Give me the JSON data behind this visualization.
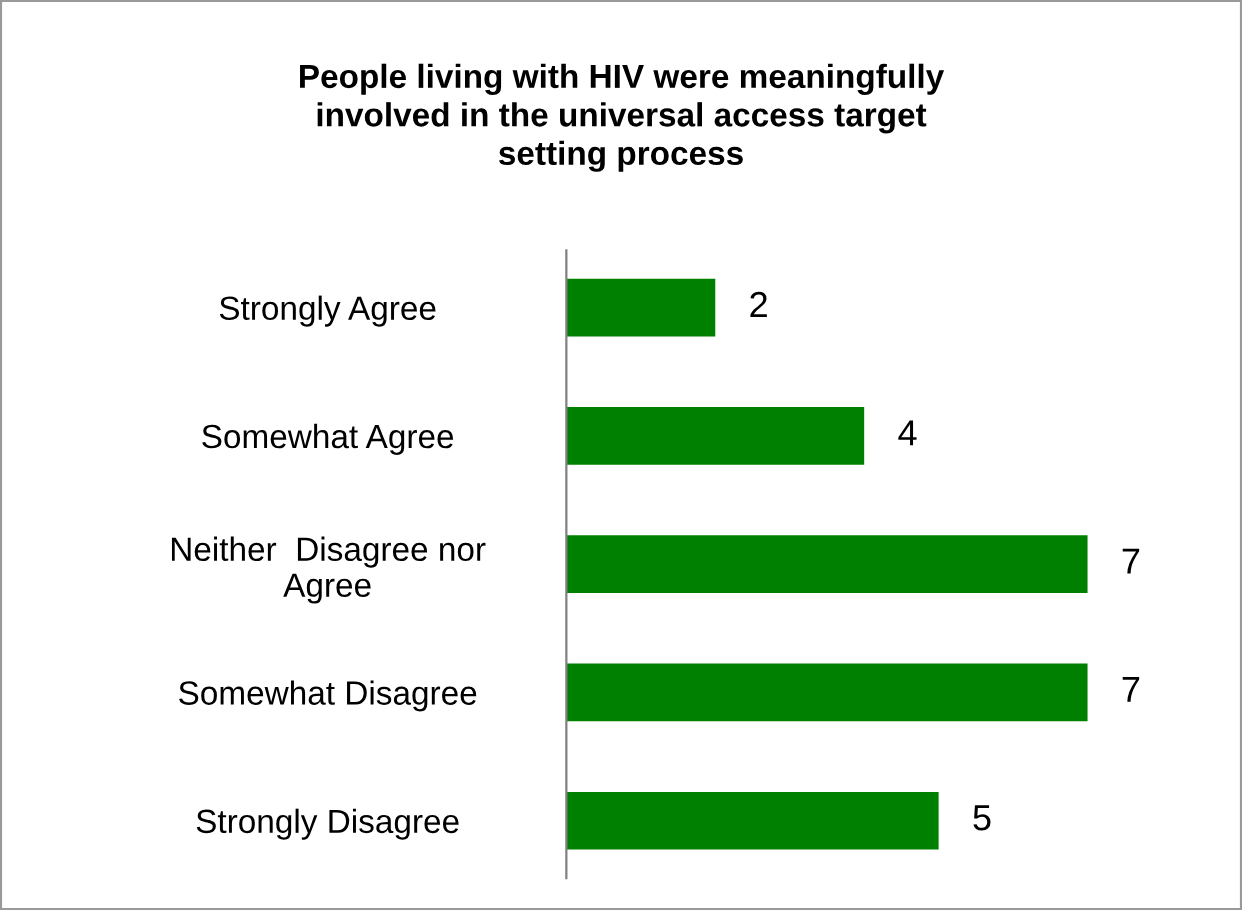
{
  "chart_data": {
    "type": "bar",
    "orientation": "horizontal",
    "title": "People living with HIV were meaningfully\ninvolved in the universal access target\nsetting process",
    "categories": [
      "Strongly Agree",
      "Somewhat Agree",
      "Neither  Disagree nor\nAgree",
      "Somewhat Disagree",
      "Strongly Disagree"
    ],
    "values": [
      2,
      4,
      7,
      7,
      5
    ],
    "color": "#008000",
    "data_labels": true
  }
}
